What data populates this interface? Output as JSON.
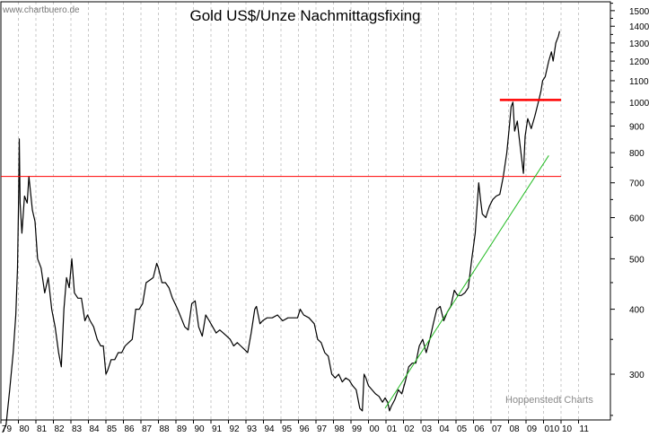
{
  "chart_data": {
    "type": "line",
    "title": "Gold US$/Unze Nachmittagsfixing",
    "watermark": "www.chartbuero.de",
    "source_label": "Hoppenstedt Charts",
    "xlabel": "",
    "ylabel": "",
    "y_scale": "log",
    "ylim": [
      245,
      1560
    ],
    "y_ticks": [
      300,
      400,
      500,
      600,
      700,
      800,
      900,
      1000,
      1100,
      1200,
      1300,
      1400,
      1500
    ],
    "x_ticks": [
      "79",
      "80",
      "81",
      "82",
      "83",
      "84",
      "85",
      "86",
      "87",
      "88",
      "89",
      "90",
      "91",
      "92",
      "93",
      "94",
      "95",
      "96",
      "97",
      "98",
      "99",
      "00",
      "01",
      "02",
      "03",
      "04",
      "05",
      "06",
      "07",
      "08",
      "09",
      "010",
      "10",
      "11"
    ],
    "grid": true,
    "colors": {
      "price": "#000000",
      "resistance": "#ff0000",
      "trend": "#22bb22",
      "grid": "#c8c8c8"
    },
    "series": [
      {
        "key": "price",
        "points": [
          [
            1979.0,
            228
          ],
          [
            1979.3,
            240
          ],
          [
            1979.5,
            280
          ],
          [
            1979.7,
            330
          ],
          [
            1979.85,
            390
          ],
          [
            1979.95,
            480
          ],
          [
            1980.02,
            680
          ],
          [
            1980.05,
            850
          ],
          [
            1980.1,
            640
          ],
          [
            1980.2,
            560
          ],
          [
            1980.35,
            660
          ],
          [
            1980.5,
            640
          ],
          [
            1980.6,
            720
          ],
          [
            1980.8,
            620
          ],
          [
            1980.95,
            590
          ],
          [
            1981.1,
            500
          ],
          [
            1981.3,
            480
          ],
          [
            1981.5,
            430
          ],
          [
            1981.7,
            460
          ],
          [
            1981.9,
            400
          ],
          [
            1982.1,
            370
          ],
          [
            1982.3,
            330
          ],
          [
            1982.45,
            310
          ],
          [
            1982.6,
            400
          ],
          [
            1982.75,
            460
          ],
          [
            1982.9,
            440
          ],
          [
            1983.05,
            500
          ],
          [
            1983.2,
            430
          ],
          [
            1983.4,
            420
          ],
          [
            1983.6,
            420
          ],
          [
            1983.8,
            380
          ],
          [
            1983.95,
            390
          ],
          [
            1984.1,
            380
          ],
          [
            1984.3,
            370
          ],
          [
            1984.5,
            350
          ],
          [
            1984.7,
            340
          ],
          [
            1984.85,
            340
          ],
          [
            1985.0,
            300
          ],
          [
            1985.1,
            305
          ],
          [
            1985.3,
            320
          ],
          [
            1985.5,
            320
          ],
          [
            1985.7,
            330
          ],
          [
            1985.9,
            330
          ],
          [
            1986.1,
            340
          ],
          [
            1986.3,
            345
          ],
          [
            1986.5,
            350
          ],
          [
            1986.7,
            400
          ],
          [
            1986.9,
            400
          ],
          [
            1987.1,
            410
          ],
          [
            1987.3,
            450
          ],
          [
            1987.5,
            455
          ],
          [
            1987.7,
            460
          ],
          [
            1987.9,
            490
          ],
          [
            1988.0,
            480
          ],
          [
            1988.2,
            450
          ],
          [
            1988.4,
            450
          ],
          [
            1988.6,
            440
          ],
          [
            1988.8,
            420
          ],
          [
            1988.95,
            410
          ],
          [
            1989.1,
            400
          ],
          [
            1989.3,
            385
          ],
          [
            1989.5,
            370
          ],
          [
            1989.7,
            365
          ],
          [
            1989.9,
            410
          ],
          [
            1990.1,
            415
          ],
          [
            1990.3,
            370
          ],
          [
            1990.5,
            355
          ],
          [
            1990.7,
            390
          ],
          [
            1990.9,
            380
          ],
          [
            1991.1,
            370
          ],
          [
            1991.3,
            360
          ],
          [
            1991.5,
            365
          ],
          [
            1991.7,
            360
          ],
          [
            1991.9,
            355
          ],
          [
            1992.1,
            350
          ],
          [
            1992.3,
            340
          ],
          [
            1992.5,
            345
          ],
          [
            1992.7,
            340
          ],
          [
            1992.9,
            335
          ],
          [
            1993.1,
            330
          ],
          [
            1993.3,
            360
          ],
          [
            1993.5,
            400
          ],
          [
            1993.6,
            405
          ],
          [
            1993.8,
            375
          ],
          [
            1993.95,
            380
          ],
          [
            1994.2,
            385
          ],
          [
            1994.5,
            385
          ],
          [
            1994.8,
            390
          ],
          [
            1995.1,
            380
          ],
          [
            1995.4,
            385
          ],
          [
            1995.7,
            385
          ],
          [
            1995.95,
            385
          ],
          [
            1996.1,
            400
          ],
          [
            1996.3,
            390
          ],
          [
            1996.6,
            385
          ],
          [
            1996.9,
            375
          ],
          [
            1997.1,
            350
          ],
          [
            1997.3,
            345
          ],
          [
            1997.5,
            330
          ],
          [
            1997.7,
            325
          ],
          [
            1997.9,
            300
          ],
          [
            1998.1,
            295
          ],
          [
            1998.3,
            300
          ],
          [
            1998.5,
            290
          ],
          [
            1998.7,
            295
          ],
          [
            1998.9,
            292
          ],
          [
            1999.1,
            285
          ],
          [
            1999.3,
            280
          ],
          [
            1999.5,
            258
          ],
          [
            1999.65,
            255
          ],
          [
            1999.75,
            300
          ],
          [
            1999.85,
            295
          ],
          [
            2000.0,
            285
          ],
          [
            2000.2,
            280
          ],
          [
            2000.4,
            275
          ],
          [
            2000.6,
            272
          ],
          [
            2000.8,
            265
          ],
          [
            2000.95,
            270
          ],
          [
            2001.1,
            265
          ],
          [
            2001.2,
            255
          ],
          [
            2001.3,
            260
          ],
          [
            2001.5,
            268
          ],
          [
            2001.7,
            280
          ],
          [
            2001.9,
            275
          ],
          [
            2002.1,
            290
          ],
          [
            2002.3,
            310
          ],
          [
            2002.5,
            315
          ],
          [
            2002.7,
            315
          ],
          [
            2002.9,
            340
          ],
          [
            2003.1,
            350
          ],
          [
            2003.3,
            330
          ],
          [
            2003.5,
            350
          ],
          [
            2003.7,
            375
          ],
          [
            2003.9,
            400
          ],
          [
            2004.1,
            405
          ],
          [
            2004.3,
            380
          ],
          [
            2004.5,
            395
          ],
          [
            2004.7,
            405
          ],
          [
            2004.9,
            435
          ],
          [
            2005.1,
            425
          ],
          [
            2005.3,
            425
          ],
          [
            2005.5,
            430
          ],
          [
            2005.7,
            440
          ],
          [
            2005.9,
            500
          ],
          [
            2006.1,
            560
          ],
          [
            2006.3,
            700
          ],
          [
            2006.4,
            650
          ],
          [
            2006.5,
            610
          ],
          [
            2006.7,
            600
          ],
          [
            2006.9,
            630
          ],
          [
            2007.1,
            650
          ],
          [
            2007.3,
            660
          ],
          [
            2007.5,
            665
          ],
          [
            2007.7,
            720
          ],
          [
            2007.9,
            800
          ],
          [
            2008.05,
            900
          ],
          [
            2008.15,
            980
          ],
          [
            2008.25,
            1000
          ],
          [
            2008.35,
            880
          ],
          [
            2008.5,
            920
          ],
          [
            2008.6,
            860
          ],
          [
            2008.75,
            780
          ],
          [
            2008.85,
            730
          ],
          [
            2008.95,
            860
          ],
          [
            2009.1,
            930
          ],
          [
            2009.3,
            890
          ],
          [
            2009.5,
            940
          ],
          [
            2009.7,
            1000
          ],
          [
            2009.85,
            1050
          ],
          [
            2009.95,
            1100
          ],
          [
            2010.1,
            1120
          ],
          [
            2010.3,
            1200
          ],
          [
            2010.45,
            1250
          ],
          [
            2010.55,
            1200
          ],
          [
            2010.7,
            1300
          ],
          [
            2010.85,
            1340
          ],
          [
            2010.92,
            1370
          ]
        ]
      },
      {
        "key": "resistance_1980",
        "points": [
          [
            1979.0,
            720
          ],
          [
            2011.0,
            720
          ]
        ]
      },
      {
        "key": "resistance_2008",
        "points": [
          [
            2007.5,
            1010
          ],
          [
            2011.0,
            1010
          ]
        ]
      },
      {
        "key": "trend",
        "points": [
          [
            2000.95,
            258
          ],
          [
            2010.3,
            790
          ]
        ]
      }
    ]
  }
}
